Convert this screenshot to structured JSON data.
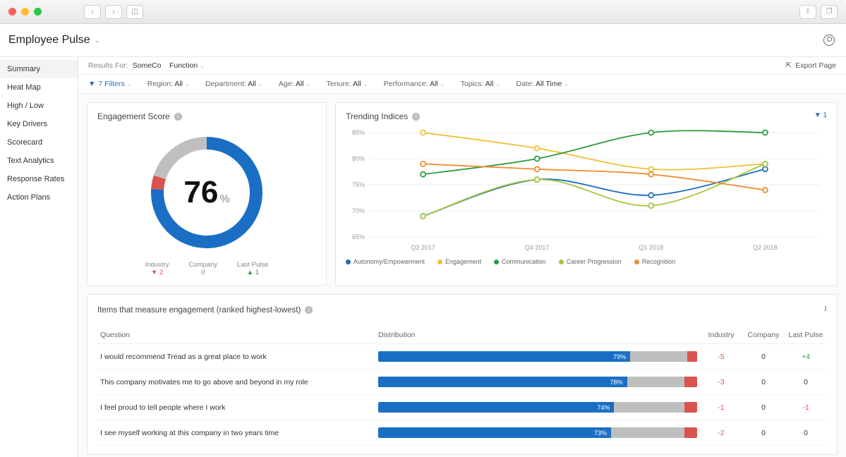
{
  "app": {
    "title": "Employee Pulse"
  },
  "sidebar": {
    "items": [
      {
        "label": "Summary",
        "active": true
      },
      {
        "label": "Heat Map"
      },
      {
        "label": "High / Low"
      },
      {
        "label": "Key Drivers"
      },
      {
        "label": "Scorecard"
      },
      {
        "label": "Text Analytics"
      },
      {
        "label": "Response Rates"
      },
      {
        "label": "Action Plans"
      }
    ]
  },
  "topbar": {
    "results_label": "Results For:",
    "results_value": "SomeCo",
    "grouping": "Function",
    "export_label": "Export Page"
  },
  "filters": {
    "count_label": "7 Filters",
    "items": [
      {
        "name": "Region",
        "value": "All"
      },
      {
        "name": "Department",
        "value": "All"
      },
      {
        "name": "Age",
        "value": "All"
      },
      {
        "name": "Tenure",
        "value": "All"
      },
      {
        "name": "Performance",
        "value": "All"
      },
      {
        "name": "Topics",
        "value": "All"
      },
      {
        "name": "Date",
        "value": "All Time"
      }
    ]
  },
  "gauge": {
    "title": "Engagement Score",
    "value": 76,
    "segments": [
      {
        "color": "#1a6fc4",
        "pct": 76
      },
      {
        "color": "#d9534f",
        "pct": 4
      },
      {
        "color": "#bfbfbf",
        "pct": 20
      }
    ],
    "ring_width": 18,
    "legend": [
      {
        "label": "Industry",
        "delta": -2
      },
      {
        "label": "Company",
        "delta": 0
      },
      {
        "label": "Last Pulse",
        "delta": 1
      }
    ]
  },
  "trend": {
    "title": "Trending Indices",
    "filter_badge": "1",
    "y_axis": {
      "min": 65,
      "max": 85,
      "step": 5,
      "format": "{v}%"
    },
    "x_categories": [
      "Q3 2017",
      "Q4 2017",
      "Q1 2018",
      "Q2 2018"
    ],
    "grid_color": "#eeeeee",
    "series": [
      {
        "name": "Autonomy/Empowerment",
        "color": "#1a6fc4",
        "values": [
          69,
          76,
          73,
          78
        ]
      },
      {
        "name": "Engagement",
        "color": "#f2c037",
        "values": [
          85,
          82,
          78,
          79
        ]
      },
      {
        "name": "Communication",
        "color": "#2a9d3f",
        "values": [
          77,
          80,
          85,
          85
        ]
      },
      {
        "name": "Career Progression",
        "color": "#a4c639",
        "values": [
          69,
          76,
          71,
          79
        ]
      },
      {
        "name": "Recognition",
        "color": "#f08c2e",
        "values": [
          79,
          78,
          77,
          74
        ]
      }
    ],
    "line_width": 1.8,
    "marker_radius": 3.5
  },
  "items": {
    "title": "Items that measure engagement (ranked highest-lowest)",
    "columns": [
      "Question",
      "Distribution",
      "Industry",
      "Company",
      "Last Pulse"
    ],
    "bar_colors": {
      "fav": "#1a6fc4",
      "neu": "#bfbfbf",
      "unf": "#d9534f"
    },
    "rows": [
      {
        "q": "I would recommend Tread as a great place to work",
        "dist": {
          "fav": 79,
          "neu": 18,
          "unf": 3
        },
        "industry": -5,
        "company": 0,
        "last": 4
      },
      {
        "q": "This company motivates me to go above and beyond in my role",
        "dist": {
          "fav": 78,
          "neu": 18,
          "unf": 4
        },
        "industry": -3,
        "company": 0,
        "last": 0
      },
      {
        "q": "I feel proud to tell people where I work",
        "dist": {
          "fav": 74,
          "neu": 22,
          "unf": 4
        },
        "industry": -1,
        "company": 0,
        "last": -1
      },
      {
        "q": "I see myself working at this company in two years time",
        "dist": {
          "fav": 73,
          "neu": 23,
          "unf": 4
        },
        "industry": -2,
        "company": 0,
        "last": 0
      }
    ]
  }
}
